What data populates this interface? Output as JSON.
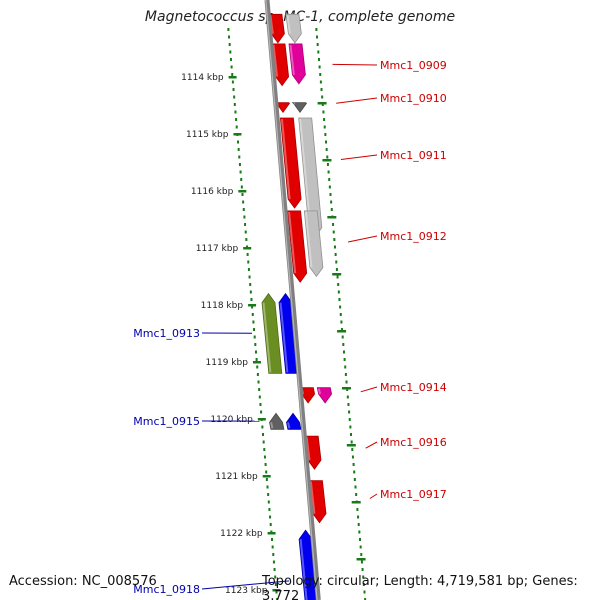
{
  "title": "Magnetococcus sp. MC-1, complete genome",
  "footer": {
    "accession": "Accession: NC_008576",
    "topology": "Topology: circular; Length: 4,719,581 bp; Genes: 3,772"
  },
  "colors": {
    "forward_label": "#cc0000",
    "reverse_label": "#0000aa",
    "ruler": "#1a7a1a",
    "backbone": "#808080"
  },
  "ticks": [
    "1114 kbp",
    "1115 kbp",
    "1116 kbp",
    "1117 kbp",
    "1118 kbp",
    "1119 kbp",
    "1120 kbp",
    "1121 kbp",
    "1122 kbp",
    "1123 kbp"
  ],
  "genes": [
    {
      "name": "",
      "color": "#e00000",
      "strand": 1,
      "row": 1,
      "start_kbp": 1112.9,
      "end_kbp": 1113.4
    },
    {
      "name": "",
      "color": "#c0c0c0",
      "strand": 1,
      "row": 2,
      "start_kbp": 1112.9,
      "end_kbp": 1113.4
    },
    {
      "name": "Mmc1_0909",
      "color": "#e00000",
      "strand": 1,
      "row": 1,
      "start_kbp": 1113.42,
      "end_kbp": 1114.15,
      "label_row": 0
    },
    {
      "name": "",
      "color": "#e0009a",
      "strand": 1,
      "row": 2,
      "start_kbp": 1113.42,
      "end_kbp": 1114.12
    },
    {
      "name": "",
      "color": "#e00000",
      "strand": 1,
      "row": 1,
      "start_kbp": 1114.45,
      "end_kbp": 1114.62
    },
    {
      "name": "Mmc1_0910",
      "color": "#606060",
      "strand": 1,
      "row": 2,
      "start_kbp": 1114.45,
      "end_kbp": 1114.62,
      "label_row": 1
    },
    {
      "name": "Mmc1_0911",
      "color": "#e00000",
      "strand": 1,
      "row": 1,
      "start_kbp": 1114.72,
      "end_kbp": 1116.3,
      "label_row": 2
    },
    {
      "name": "",
      "color": "#c0c0c0",
      "strand": 1,
      "row": 2,
      "start_kbp": 1114.72,
      "end_kbp": 1116.8
    },
    {
      "name": "Mmc1_0912",
      "color": "#e00000",
      "strand": 1,
      "row": 1,
      "start_kbp": 1116.35,
      "end_kbp": 1117.6,
      "label_row": 3
    },
    {
      "name": "",
      "color": "#c0c0c0",
      "strand": 1,
      "row": 2,
      "start_kbp": 1116.35,
      "end_kbp": 1117.5
    },
    {
      "name": "Mmc1_0913",
      "color": "#6b8e23",
      "strand": -1,
      "row": 2,
      "start_kbp": 1117.8,
      "end_kbp": 1119.2,
      "label_row": 0
    },
    {
      "name": "",
      "color": "#0000ee",
      "strand": -1,
      "row": 1,
      "start_kbp": 1117.8,
      "end_kbp": 1119.2
    },
    {
      "name": "Mmc1_0914",
      "color": "#e00000",
      "strand": 1,
      "row": 1,
      "start_kbp": 1119.45,
      "end_kbp": 1119.72,
      "label_row": 4
    },
    {
      "name": "",
      "color": "#e0009a",
      "strand": 1,
      "row": 2,
      "start_kbp": 1119.45,
      "end_kbp": 1119.72
    },
    {
      "name": "Mmc1_0915",
      "color": "#606060",
      "strand": -1,
      "row": 2,
      "start_kbp": 1119.9,
      "end_kbp": 1120.18,
      "label_row": 1
    },
    {
      "name": "",
      "color": "#0000ee",
      "strand": -1,
      "row": 1,
      "start_kbp": 1119.9,
      "end_kbp": 1120.18
    },
    {
      "name": "Mmc1_0916",
      "color": "#e00000",
      "strand": 1,
      "row": 1,
      "start_kbp": 1120.3,
      "end_kbp": 1120.88,
      "label_row": 5
    },
    {
      "name": "Mmc1_0917",
      "color": "#e00000",
      "strand": 1,
      "row": 1,
      "start_kbp": 1121.08,
      "end_kbp": 1121.82,
      "label_row": 6
    },
    {
      "name": "Mmc1_0918",
      "color": "#0000ee",
      "strand": -1,
      "row": 1,
      "start_kbp": 1121.95,
      "end_kbp": 1123.3,
      "label_row": 2
    }
  ]
}
